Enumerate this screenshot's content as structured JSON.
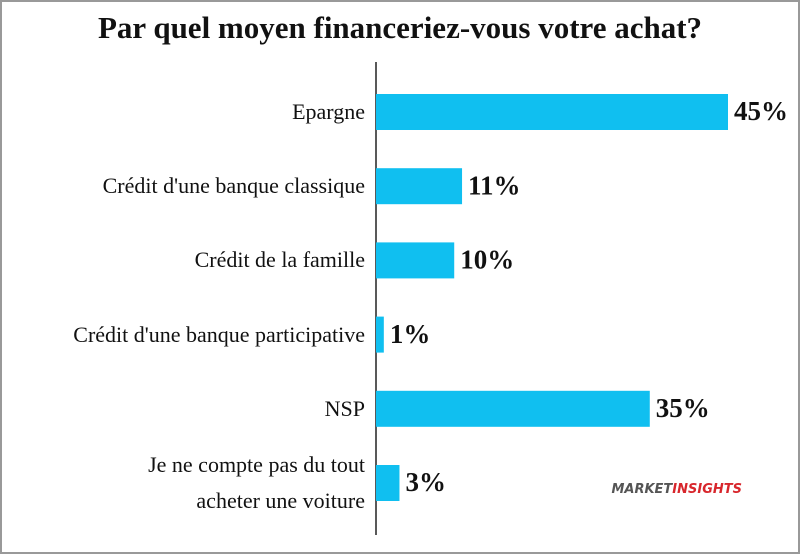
{
  "chart_data": {
    "type": "barh",
    "title": "Par quel moyen financeriez-vous votre achat?",
    "categories": [
      "Epargne",
      "Crédit d'une banque classique",
      "Crédit de la famille",
      "Crédit d'une banque participative",
      "NSP",
      "Je ne compte pas du tout\nacheter une voiture"
    ],
    "values": [
      45,
      11,
      10,
      1,
      35,
      3
    ],
    "value_labels": [
      "45%",
      "11%",
      "10%",
      "1%",
      "35%",
      "3%"
    ],
    "color": "#10bff0",
    "brand": {
      "first": "MARKET",
      "second": "INSIGHTS"
    }
  }
}
